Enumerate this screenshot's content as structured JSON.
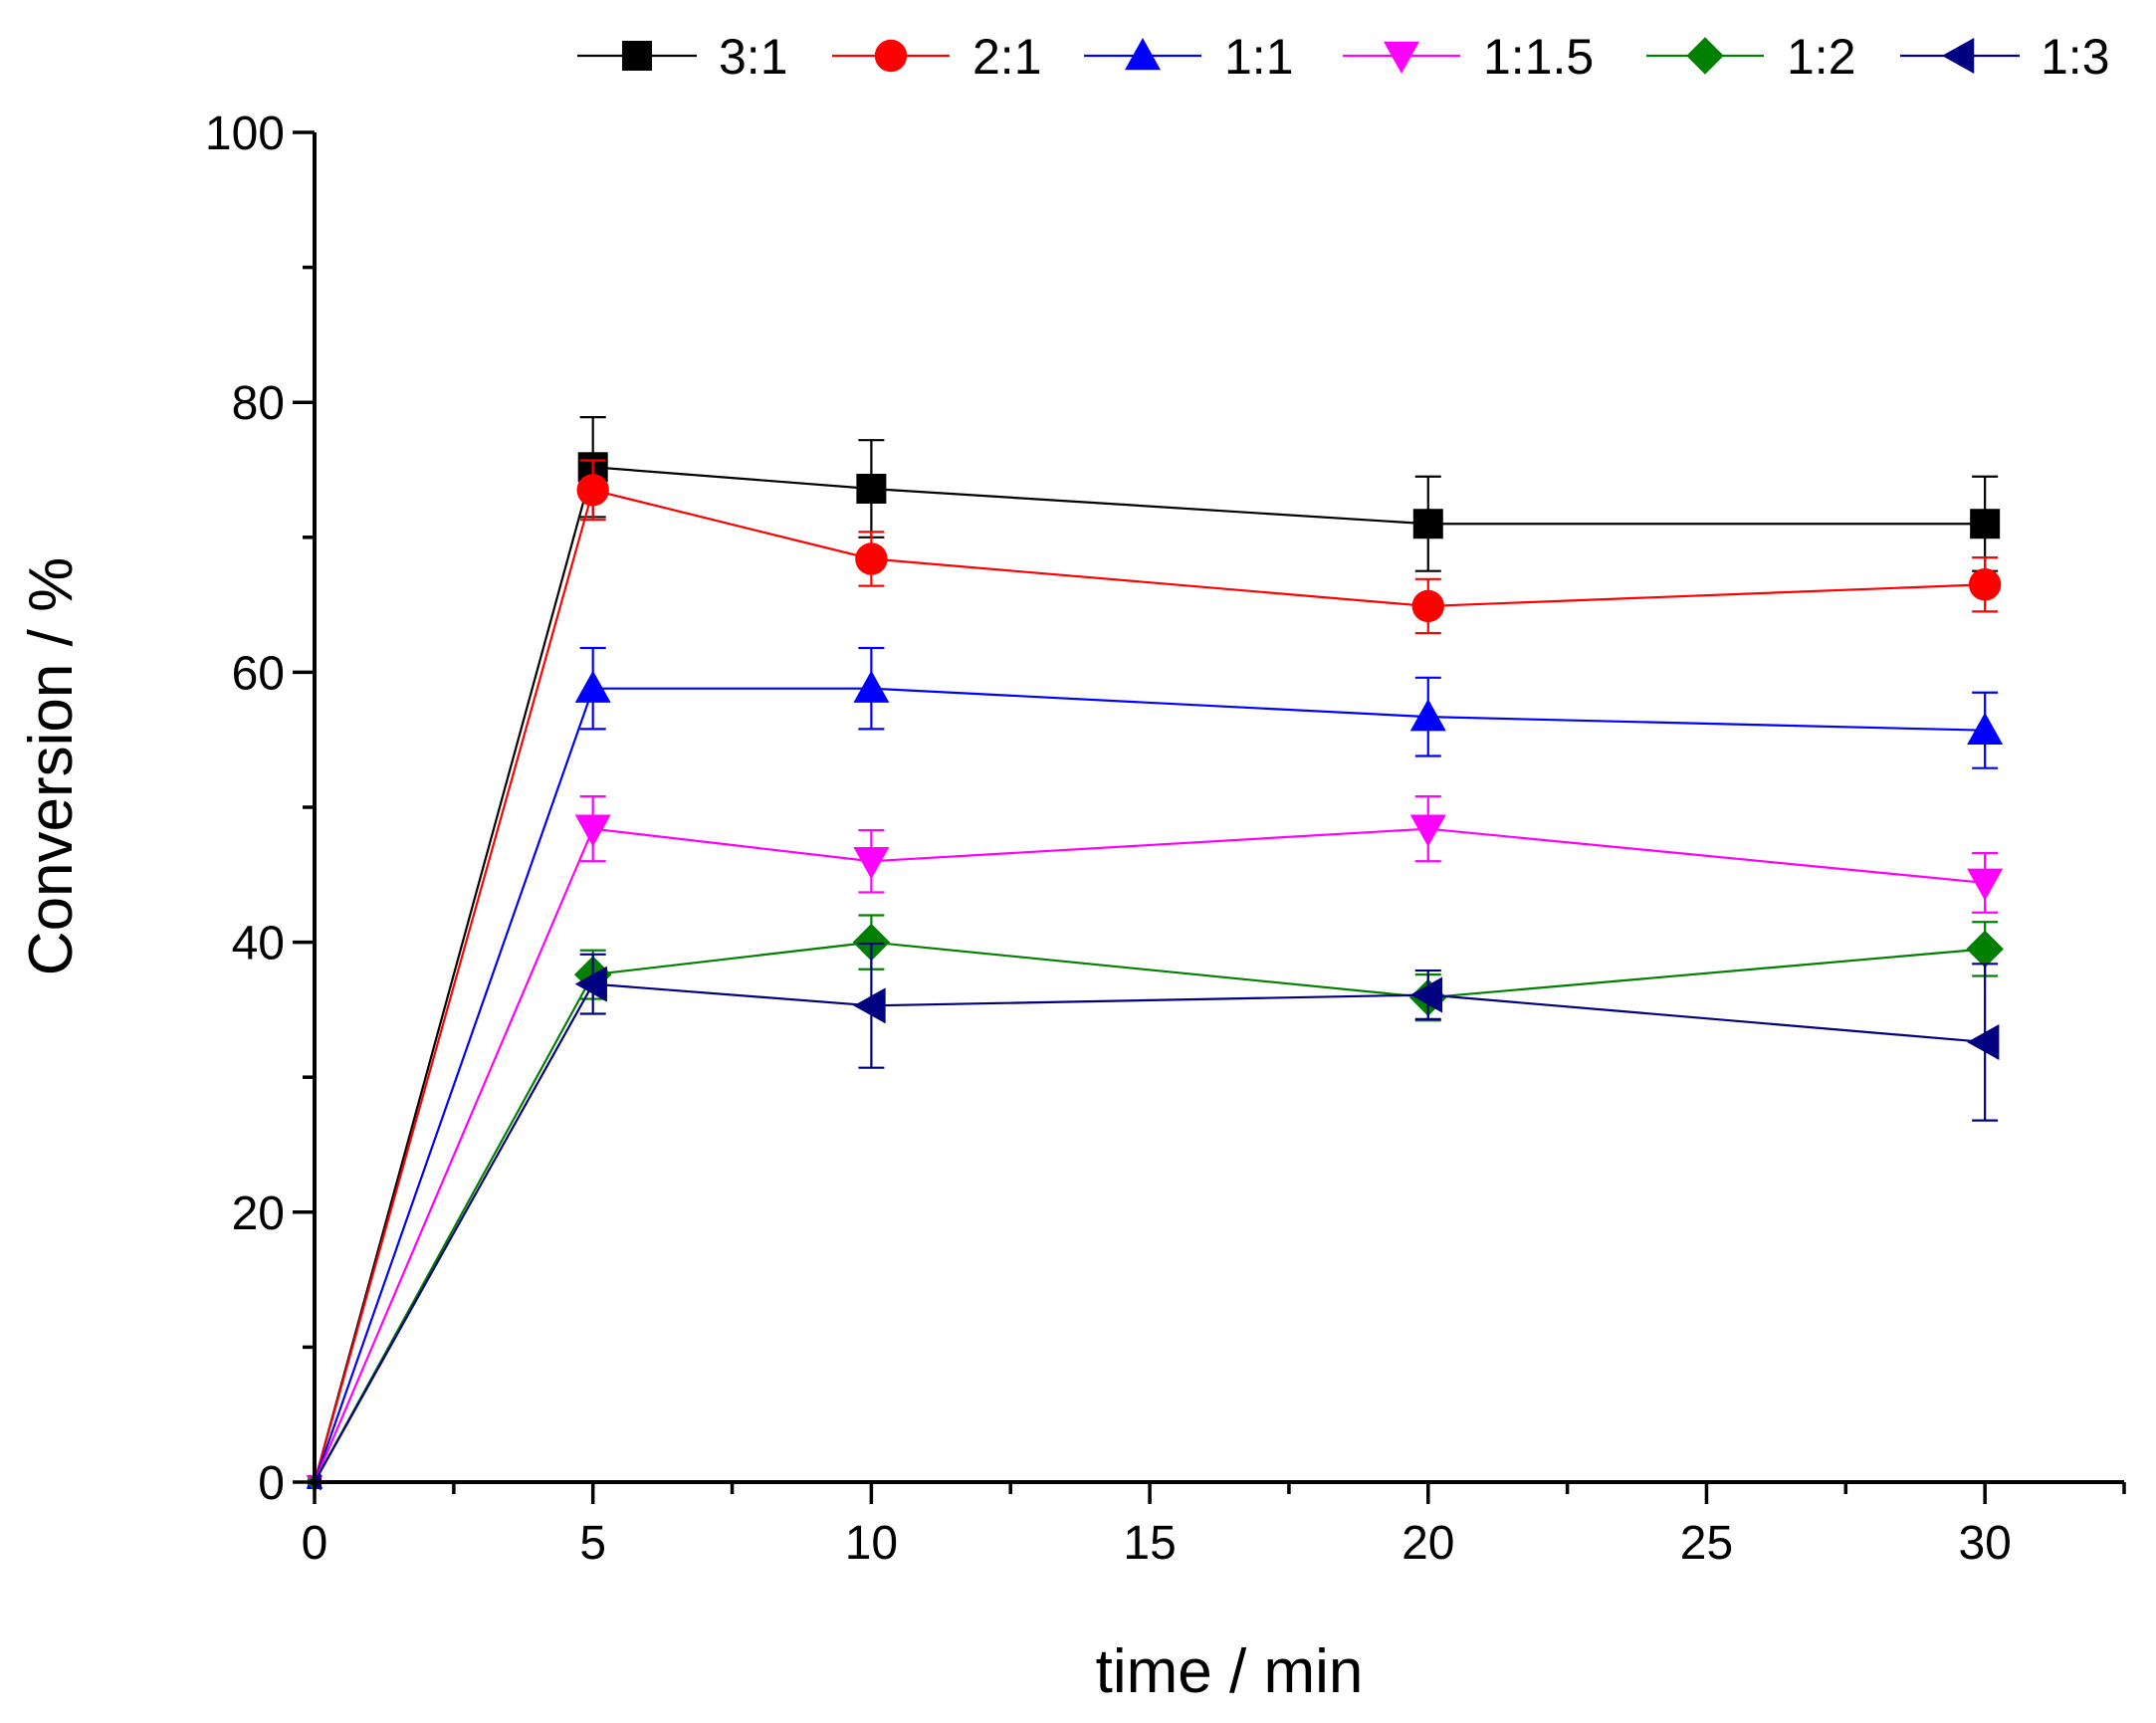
{
  "chart_data": {
    "type": "line",
    "title": "",
    "xlabel": "time / min",
    "ylabel": "Conversion / %",
    "xlim": [
      0,
      32.5
    ],
    "ylim": [
      0,
      100
    ],
    "xticks": [
      0,
      5,
      10,
      15,
      20,
      25,
      30
    ],
    "yticks": [
      0,
      20,
      40,
      60,
      80,
      100
    ],
    "x_minor_step": 2.5,
    "y_minor_step": 10,
    "grid": false,
    "legend_position": "top",
    "x": [
      0,
      5,
      10,
      20,
      30
    ],
    "series": [
      {
        "name": "3:1",
        "color": "#000000",
        "marker": "square",
        "values": [
          0,
          75.2,
          73.6,
          71.0,
          71.0
        ],
        "errors": [
          0,
          3.7,
          3.6,
          3.5,
          3.5
        ]
      },
      {
        "name": "2:1",
        "color": "#ff0000",
        "marker": "circle",
        "values": [
          0,
          73.5,
          68.4,
          64.9,
          66.5
        ],
        "errors": [
          0,
          2.2,
          2.0,
          2.0,
          2.0
        ]
      },
      {
        "name": "1:1",
        "color": "#0000ff",
        "marker": "triangle-up",
        "values": [
          0,
          58.8,
          58.8,
          56.7,
          55.7
        ],
        "errors": [
          0,
          3.0,
          3.0,
          2.9,
          2.8
        ]
      },
      {
        "name": "1:1.5",
        "color": "#ff00ff",
        "marker": "triangle-down",
        "values": [
          0,
          48.4,
          46.0,
          48.4,
          44.4
        ],
        "errors": [
          0,
          2.4,
          2.3,
          2.4,
          2.2
        ]
      },
      {
        "name": "1:2",
        "color": "#008000",
        "marker": "diamond",
        "values": [
          0,
          37.6,
          40.0,
          35.9,
          39.5
        ],
        "errors": [
          0,
          1.8,
          2.0,
          1.7,
          2.0
        ]
      },
      {
        "name": "1:3",
        "color": "#000080",
        "marker": "triangle-left",
        "values": [
          0,
          36.9,
          35.3,
          36.1,
          32.6
        ],
        "errors": [
          0,
          2.2,
          4.6,
          1.8,
          5.8
        ]
      }
    ]
  }
}
